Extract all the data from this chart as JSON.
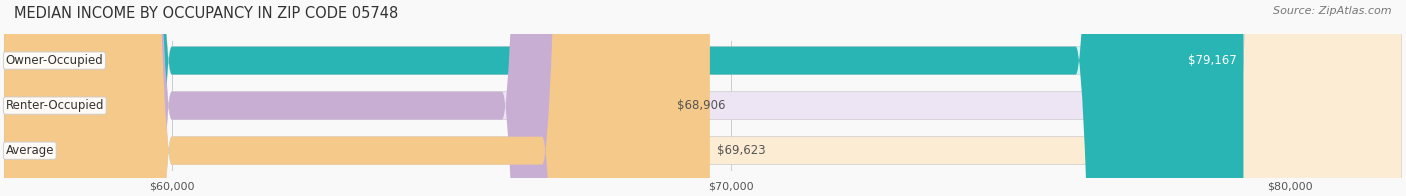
{
  "title": "MEDIAN INCOME BY OCCUPANCY IN ZIP CODE 05748",
  "source_text": "Source: ZipAtlas.com",
  "categories": [
    "Owner-Occupied",
    "Renter-Occupied",
    "Average"
  ],
  "values": [
    79167,
    68906,
    69623
  ],
  "bar_colors": [
    "#2ab5b5",
    "#c9aed4",
    "#f5c98a"
  ],
  "bar_bg_colors": [
    "#d8f2f2",
    "#ede4f4",
    "#fdecd4"
  ],
  "value_labels": [
    "$79,167",
    "$68,906",
    "$69,623"
  ],
  "xmin": 57000,
  "xmax": 82000,
  "xticks": [
    60000,
    70000,
    80000
  ],
  "xtick_labels": [
    "$60,000",
    "$70,000",
    "$80,000"
  ],
  "figsize": [
    14.06,
    1.96
  ],
  "dpi": 100,
  "bar_height": 0.62,
  "title_fontsize": 10.5,
  "label_fontsize": 8.5,
  "value_fontsize": 8.5,
  "source_fontsize": 8,
  "tick_fontsize": 8
}
